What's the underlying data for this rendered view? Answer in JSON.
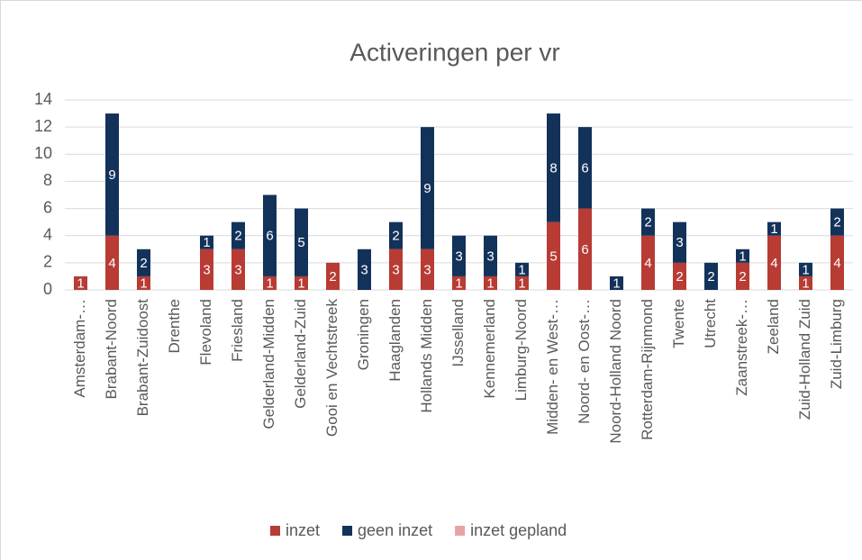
{
  "chart_data": {
    "type": "stacked_bar",
    "title": "Activeringen per vr",
    "categories": [
      "Amsterdam-…",
      "Brabant-Noord",
      "Brabant-Zuidoost",
      "Drenthe",
      "Flevoland",
      "Friesland",
      "Gelderland-Midden",
      "Gelderland-Zuid",
      "Gooi en Vechtstreek",
      "Groningen",
      "Haaglanden",
      "Hollands Midden",
      "IJsselland",
      "Kennemerland",
      "Limburg-Noord",
      "Midden- en West-…",
      "Noord- en Oost-…",
      "Noord-Holland Noord",
      "Rotterdam-Rijnmond",
      "Twente",
      "Utrecht",
      "Zaanstreek-…",
      "Zeeland",
      "Zuid-Holland Zuid",
      "Zuid-Limburg"
    ],
    "series": [
      {
        "name": "inzet",
        "color": "#b83b34",
        "values": [
          1,
          4,
          1,
          0,
          3,
          3,
          1,
          1,
          2,
          0,
          3,
          3,
          1,
          1,
          1,
          5,
          6,
          0,
          4,
          2,
          0,
          2,
          4,
          1,
          4
        ]
      },
      {
        "name": "geen inzet",
        "color": "#13325a",
        "values": [
          0,
          9,
          2,
          0,
          1,
          2,
          6,
          5,
          0,
          3,
          2,
          9,
          3,
          3,
          1,
          8,
          6,
          1,
          2,
          3,
          2,
          1,
          1,
          1,
          2
        ]
      },
      {
        "name": "inzet gepland",
        "color": "#e6a3a3",
        "values": [
          0,
          0,
          0,
          0,
          0,
          0,
          0,
          0,
          0,
          0,
          0,
          0,
          0,
          0,
          0,
          0,
          0,
          0,
          0,
          0,
          0,
          0,
          0,
          0,
          0
        ]
      }
    ],
    "ylim": [
      0,
      14
    ],
    "yticks": [
      0,
      2,
      4,
      6,
      8,
      10,
      12,
      14
    ],
    "grid": true,
    "legend": "bottom"
  }
}
